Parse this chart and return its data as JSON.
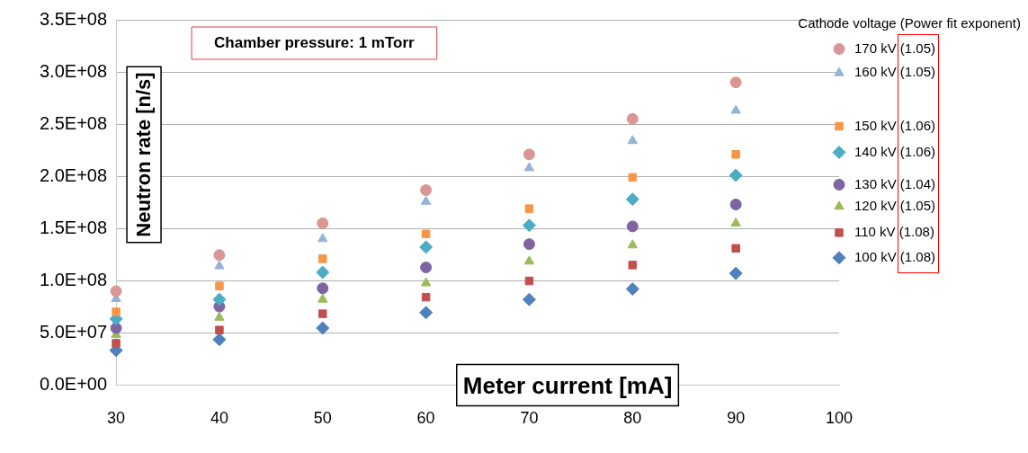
{
  "chart_data": {
    "type": "scatter",
    "xlabel": "Meter current [mA]",
    "ylabel": "Neutron rate [n/s]",
    "legend_title": "Cathode voltage (Power fit exponent)",
    "annotations": [
      "Chamber pressure: 1 mTorr"
    ],
    "x": [
      30,
      40,
      50,
      60,
      70,
      80,
      90,
      100
    ],
    "xlim": [
      30,
      100
    ],
    "xticks": [
      30,
      40,
      50,
      60,
      70,
      80,
      90,
      100
    ],
    "ylim": [
      0,
      350000000
    ],
    "yticks": [
      {
        "value": 0,
        "label": "0.0E+00"
      },
      {
        "value": 50000000,
        "label": "5.0E+07"
      },
      {
        "value": 100000000,
        "label": "1.0E+08"
      },
      {
        "value": 150000000,
        "label": "1.5E+08"
      },
      {
        "value": 200000000,
        "label": "2.0E+08"
      },
      {
        "value": 250000000,
        "label": "2.5E+08"
      },
      {
        "value": 300000000,
        "label": "3.0E+08"
      },
      {
        "value": 350000000,
        "label": "3.5E+08"
      }
    ],
    "grid": "y",
    "legend": false,
    "series": [
      {
        "name": "170 kV (1.05)",
        "color": "#d99694",
        "marker": "circle",
        "values": [
          90000000,
          124500000,
          155000000,
          186800000,
          221000000,
          255000000,
          290000000,
          322000000
        ]
      },
      {
        "name": "160 kV (1.05)",
        "color": "#95b3d7",
        "marker": "triangle",
        "values": [
          82600000,
          114000000,
          140000000,
          175800000,
          208000000,
          234000000,
          263000000,
          299000000
        ]
      },
      {
        "name": "150 kV (1.06)",
        "color": "#f79646",
        "marker": "square",
        "values": [
          70200000,
          94900000,
          121000000,
          144800000,
          169000000,
          199000000,
          221000000,
          248000000
        ]
      },
      {
        "name": "140 kV (1.06)",
        "color": "#4bacc6",
        "marker": "diamond",
        "values": [
          63400000,
          82000000,
          108000000,
          132200000,
          153000000,
          178000000,
          201000000,
          223000000
        ]
      },
      {
        "name": "130 kV (1.04)",
        "color": "#8064a2",
        "marker": "circle",
        "values": [
          54600000,
          75200000,
          92700000,
          112700000,
          135000000,
          152000000,
          173000000,
          192000000
        ]
      },
      {
        "name": "120 kV (1.05)",
        "color": "#9bbb59",
        "marker": "triangle",
        "values": [
          48300000,
          64700000,
          82000000,
          97700000,
          118500000,
          134000000,
          155000000,
          171000000
        ]
      },
      {
        "name": "110 kV (1.08)",
        "color": "#c0504d",
        "marker": "square",
        "values": [
          40000000,
          52700000,
          68300000,
          84200000,
          99800000,
          115000000,
          131000000,
          146000000
        ]
      },
      {
        "name": "100 kV (1.08)",
        "color": "#4f81bd",
        "marker": "diamond",
        "values": [
          33200000,
          43600000,
          54600000,
          69400000,
          82000000,
          92000000,
          107000000,
          122000000
        ]
      }
    ]
  }
}
